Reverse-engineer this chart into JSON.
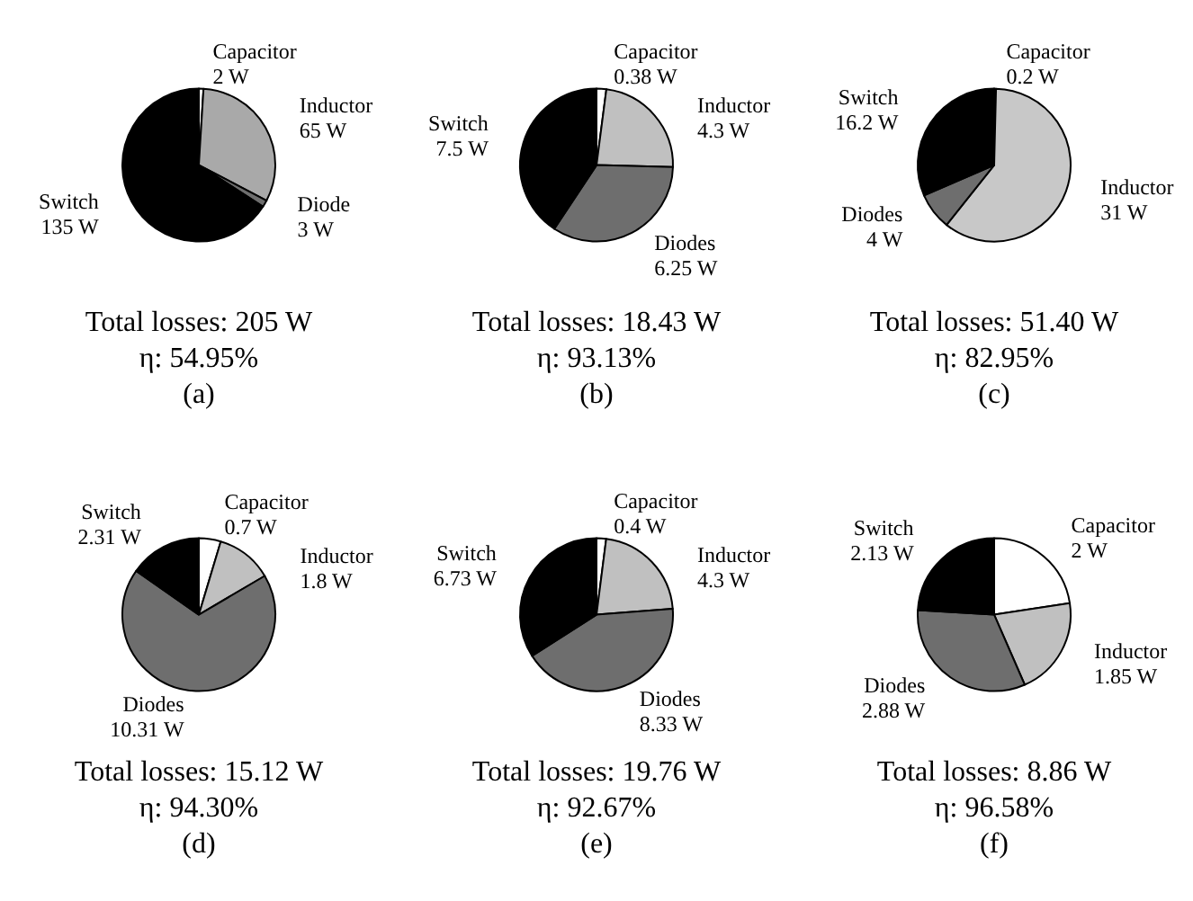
{
  "chart_data": [
    {
      "type": "pie",
      "categories": [
        "Capacitor",
        "Inductor",
        "Diode",
        "Switch"
      ],
      "values": [
        2,
        65,
        3,
        135
      ],
      "colors": [
        "#ffffff",
        "#a9a9a9",
        "#6e6e6e",
        "#000000"
      ],
      "value_labels": [
        "2 W",
        "65 W",
        "3 W",
        "135 W"
      ],
      "annotations": [
        "Total losses: 205 W",
        "η: 54.95%",
        "(a)"
      ]
    },
    {
      "type": "pie",
      "categories": [
        "Capacitor",
        "Inductor",
        "Diodes",
        "Switch"
      ],
      "values": [
        0.38,
        4.3,
        6.25,
        7.5
      ],
      "colors": [
        "#ffffff",
        "#c0c0c0",
        "#6e6e6e",
        "#000000"
      ],
      "value_labels": [
        "0.38 W",
        "4.3 W",
        "6.25 W",
        "7.5 W"
      ],
      "annotations": [
        "Total losses: 18.43 W",
        "η: 93.13%",
        "(b)"
      ]
    },
    {
      "type": "pie",
      "categories": [
        "Capacitor",
        "Inductor",
        "Diodes",
        "Switch"
      ],
      "values": [
        0.2,
        31,
        4,
        16.2
      ],
      "colors": [
        "#ffffff",
        "#c8c8c8",
        "#6e6e6e",
        "#000000"
      ],
      "value_labels": [
        "0.2 W",
        "31 W",
        "4 W",
        "16.2 W"
      ],
      "annotations": [
        "Total losses: 51.40 W",
        "η: 82.95%",
        "(c)"
      ]
    },
    {
      "type": "pie",
      "categories": [
        "Capacitor",
        "Inductor",
        "Diodes",
        "Switch"
      ],
      "values": [
        0.7,
        1.8,
        10.31,
        2.31
      ],
      "colors": [
        "#ffffff",
        "#c0c0c0",
        "#6e6e6e",
        "#000000"
      ],
      "value_labels": [
        "0.7 W",
        "1.8 W",
        "10.31 W",
        "2.31 W"
      ],
      "annotations": [
        "Total losses: 15.12 W",
        "η: 94.30%",
        "(d)"
      ]
    },
    {
      "type": "pie",
      "categories": [
        "Capacitor",
        "Inductor",
        "Diodes",
        "Switch"
      ],
      "values": [
        0.4,
        4.3,
        8.33,
        6.73
      ],
      "colors": [
        "#ffffff",
        "#c0c0c0",
        "#6e6e6e",
        "#000000"
      ],
      "value_labels": [
        "0.4 W",
        "4.3 W",
        "8.33 W",
        "6.73 W"
      ],
      "annotations": [
        "Total losses: 19.76 W",
        "η: 92.67%",
        "(e)"
      ]
    },
    {
      "type": "pie",
      "categories": [
        "Capacitor",
        "Inductor",
        "Diodes",
        "Switch"
      ],
      "values": [
        2,
        1.85,
        2.88,
        2.13
      ],
      "colors": [
        "#ffffff",
        "#c0c0c0",
        "#6e6e6e",
        "#000000"
      ],
      "value_labels": [
        "2 W",
        "1.85 W",
        "2.88 W",
        "2.13 W"
      ],
      "annotations": [
        "Total losses: 8.86 W",
        "η: 96.58%",
        "(f)"
      ]
    }
  ]
}
